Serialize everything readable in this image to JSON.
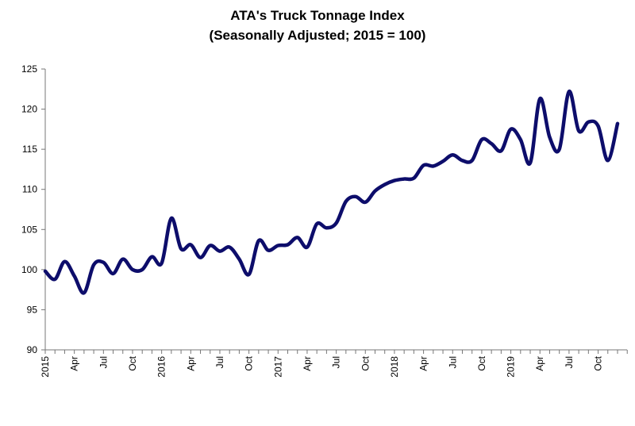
{
  "chart_data": {
    "type": "line",
    "title": "ATA's Truck Tonnage Index",
    "subtitle": "(Seasonally Adjusted; 2015 = 100)",
    "xlabel": "",
    "ylabel": "",
    "ylim": [
      90,
      125
    ],
    "yticks": [
      90,
      95,
      100,
      105,
      110,
      115,
      120,
      125
    ],
    "xrange": [
      "2015-01",
      "2019-12"
    ],
    "xtick_labels": [
      "2015",
      "Apr",
      "Jul",
      "Oct",
      "2016",
      "Apr",
      "Jul",
      "Oct",
      "2017",
      "Apr",
      "Jul",
      "Oct",
      "2018",
      "Apr",
      "Jul",
      "Oct",
      "2019",
      "Apr",
      "Jul",
      "Oct"
    ],
    "grid": false,
    "line_color": "#0d0d6b",
    "x": [
      "2015-01",
      "2015-02",
      "2015-03",
      "2015-04",
      "2015-05",
      "2015-06",
      "2015-07",
      "2015-08",
      "2015-09",
      "2015-10",
      "2015-11",
      "2015-12",
      "2016-01",
      "2016-02",
      "2016-03",
      "2016-04",
      "2016-05",
      "2016-06",
      "2016-07",
      "2016-08",
      "2016-09",
      "2016-10",
      "2016-11",
      "2016-12",
      "2017-01",
      "2017-02",
      "2017-03",
      "2017-04",
      "2017-05",
      "2017-06",
      "2017-07",
      "2017-08",
      "2017-09",
      "2017-10",
      "2017-11",
      "2017-12",
      "2018-01",
      "2018-02",
      "2018-03",
      "2018-04",
      "2018-05",
      "2018-06",
      "2018-07",
      "2018-08",
      "2018-09",
      "2018-10",
      "2018-11",
      "2018-12",
      "2019-01",
      "2019-02",
      "2019-03",
      "2019-04",
      "2019-05",
      "2019-06",
      "2019-07",
      "2019-08",
      "2019-09",
      "2019-10",
      "2019-11",
      "2019-12"
    ],
    "values": [
      99.8,
      98.8,
      101.0,
      99.2,
      97.1,
      100.6,
      100.9,
      99.5,
      101.3,
      100.0,
      100.0,
      101.6,
      100.8,
      106.4,
      102.6,
      103.1,
      101.5,
      103.0,
      102.3,
      102.8,
      101.3,
      99.4,
      103.6,
      102.4,
      103.0,
      103.1,
      104.0,
      102.8,
      105.7,
      105.2,
      105.8,
      108.5,
      109.1,
      108.4,
      109.8,
      110.6,
      111.1,
      111.3,
      111.4,
      113.0,
      112.9,
      113.5,
      114.3,
      113.6,
      113.6,
      116.2,
      115.7,
      114.8,
      117.5,
      116.2,
      113.3,
      121.3,
      116.5,
      115.0,
      122.2,
      117.3,
      118.4,
      117.9,
      113.6,
      118.2
    ]
  }
}
